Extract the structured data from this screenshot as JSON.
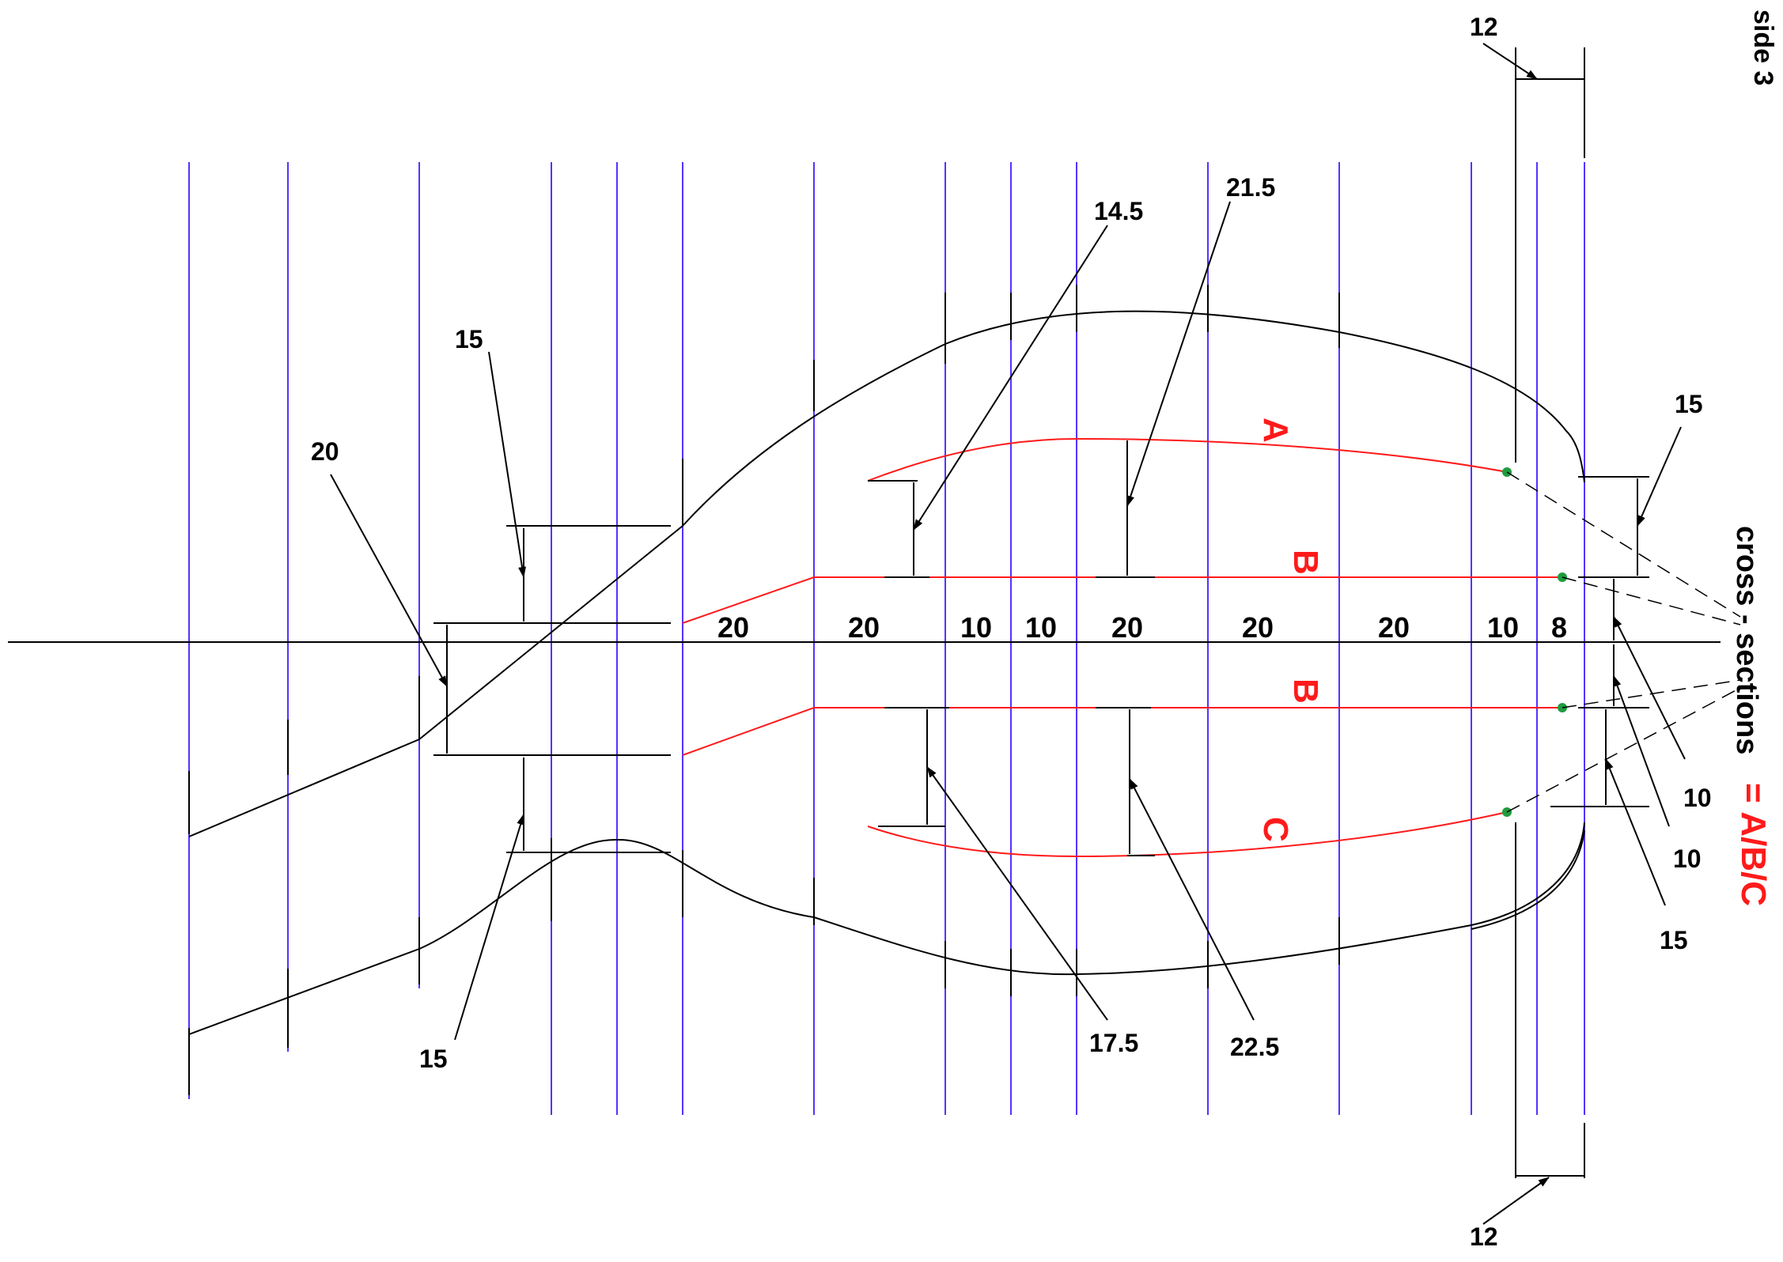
{
  "sheet_label": "side 3",
  "legend": {
    "line1": "cross - sections",
    "line2": "= A/B/C",
    "accent_color": "#ff1a1a"
  },
  "section_labels": {
    "a": "A",
    "b_upper": "B",
    "b_lower": "B",
    "c": "C"
  },
  "axis_spacings": [
    "20",
    "20",
    "10",
    "10",
    "20",
    "20",
    "20",
    "10",
    "8"
  ],
  "dimensions": {
    "top_12": "12",
    "bottom_12": "12",
    "left_20": "20",
    "upper_15": "15",
    "lower_15": "15",
    "d_14_5": "14.5",
    "d_21_5": "21.5",
    "d_17_5": "17.5",
    "d_22_5": "22.5",
    "right_15_top": "15",
    "right_10_a": "10",
    "right_10_b": "10",
    "right_15_bottom": "15"
  },
  "colors": {
    "grid_lines": "#5533ff",
    "outline": "#000000",
    "section_curves": "#ff1a1a",
    "points": "#1f9c3f"
  }
}
